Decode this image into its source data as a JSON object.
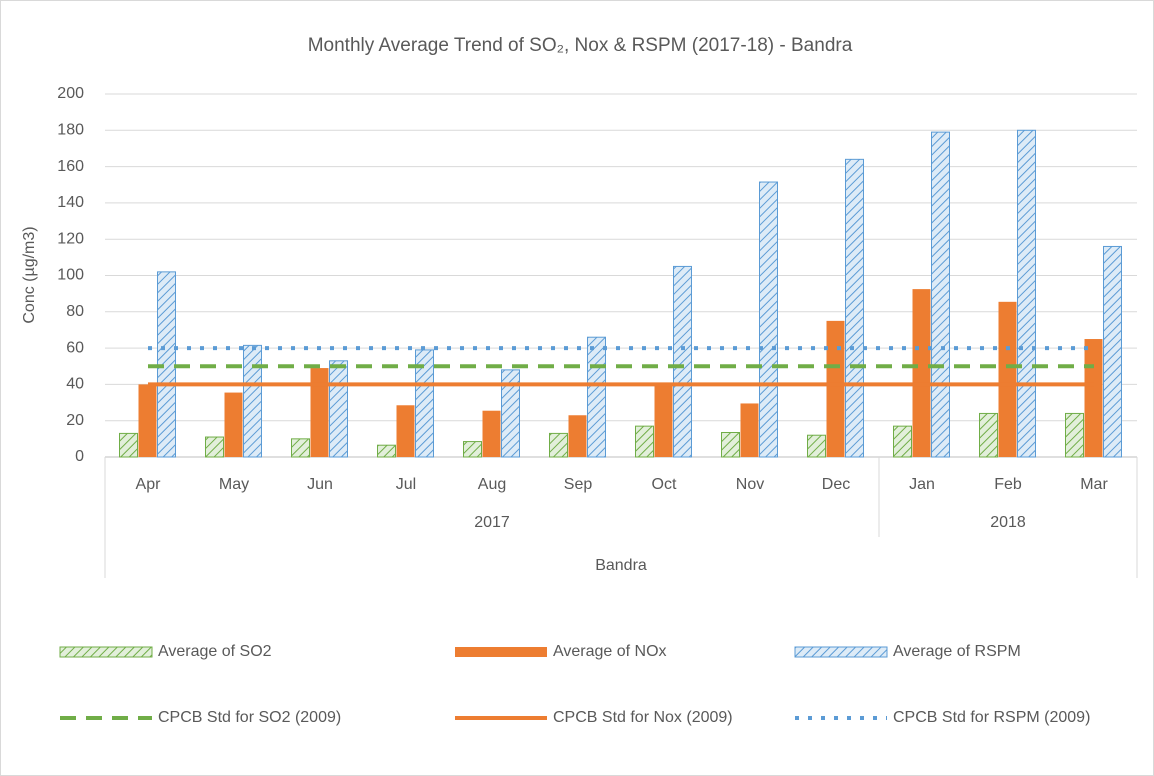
{
  "chart_data": {
    "type": "bar",
    "title": "Monthly Average Trend of SO₂, Nox & RSPM (2017-18) - Bandra",
    "y_label": "Conc (µg/m3)",
    "categories": [
      "Apr",
      "May",
      "Jun",
      "Jul",
      "Aug",
      "Sep",
      "Oct",
      "Nov",
      "Dec",
      "Jan",
      "Feb",
      "Mar"
    ],
    "category_years": [
      "2017",
      "2017",
      "2017",
      "2017",
      "2017",
      "2017",
      "2017",
      "2017",
      "2017",
      "2018",
      "2018",
      "2018"
    ],
    "outer_category": "Bandra",
    "ylim": [
      0,
      200
    ],
    "yticks": [
      0,
      20,
      40,
      60,
      80,
      100,
      120,
      140,
      160,
      180,
      200
    ],
    "grid": true,
    "legend": "bottom",
    "series": [
      {
        "name": "Average of SO2",
        "type": "bar",
        "pattern": "hatch",
        "color": "#70ad47",
        "values": [
          13,
          11,
          10,
          6.5,
          8.5,
          13,
          17,
          13.5,
          12,
          17,
          24,
          24
        ]
      },
      {
        "name": "Average of NOx",
        "type": "bar",
        "pattern": "solid",
        "color": "#ed7d31",
        "values": [
          40,
          35.5,
          49,
          28.5,
          25.5,
          23,
          41,
          29.5,
          75,
          92.5,
          85.5,
          65
        ]
      },
      {
        "name": "Average of RSPM",
        "type": "bar",
        "pattern": "hatch",
        "color": "#5b9bd5",
        "values": [
          102,
          61.5,
          53,
          59,
          48,
          66,
          105,
          151.5,
          164,
          179,
          180,
          116
        ]
      },
      {
        "name": "CPCB Std for SO2 (2009)",
        "type": "line",
        "dash": "dashed",
        "color": "#70ad47",
        "values": [
          50,
          50,
          50,
          50,
          50,
          50,
          50,
          50,
          50,
          50,
          50,
          50
        ]
      },
      {
        "name": "CPCB Std for Nox (2009)",
        "type": "line",
        "dash": "solid",
        "color": "#ed7d31",
        "values": [
          40,
          40,
          40,
          40,
          40,
          40,
          40,
          40,
          40,
          40,
          40,
          40
        ]
      },
      {
        "name": "CPCB Std for RSPM (2009)",
        "type": "line",
        "dash": "dotted",
        "color": "#5b9bd5",
        "values": [
          60,
          60,
          60,
          60,
          60,
          60,
          60,
          60,
          60,
          60,
          60,
          60
        ]
      }
    ]
  }
}
